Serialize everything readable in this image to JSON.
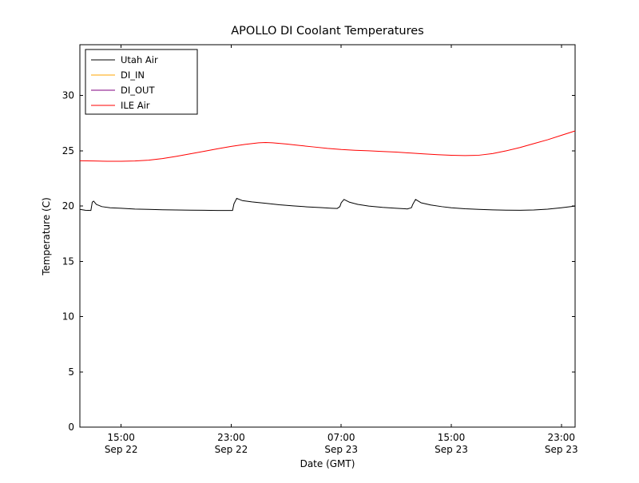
{
  "page": {
    "background": "#ffffff",
    "axes_color": "#000000"
  },
  "chart_data": {
    "type": "line",
    "title": "APOLLO DI Coolant Temperatures",
    "xlabel": "Date (GMT)",
    "ylabel": "Temperature (C)",
    "grid": false,
    "legend_position": "upper left",
    "x_unit": "hours since Sep 22 12:00 GMT",
    "xlim": [
      0,
      36
    ],
    "ylim": [
      0,
      34.6
    ],
    "yticks": [
      0,
      5,
      10,
      15,
      20,
      25,
      30
    ],
    "xticks": [
      {
        "pos": 3,
        "time": "15:00",
        "date": "Sep 22"
      },
      {
        "pos": 11,
        "time": "23:00",
        "date": "Sep 22"
      },
      {
        "pos": 19,
        "time": "07:00",
        "date": "Sep 23"
      },
      {
        "pos": 27,
        "time": "15:00",
        "date": "Sep 23"
      },
      {
        "pos": 35,
        "time": "23:00",
        "date": "Sep 23"
      }
    ],
    "series": [
      {
        "name": "Utah Air",
        "color": "#000000",
        "x": [
          0,
          0.4,
          0.8,
          0.9,
          1.0,
          1.2,
          1.6,
          2.2,
          3,
          4,
          5,
          6,
          7,
          8,
          9,
          10,
          10.8,
          11.1,
          11.2,
          11.4,
          11.8,
          12.5,
          13.5,
          14.5,
          15.5,
          16.5,
          17.5,
          18.3,
          18.7,
          18.9,
          19.0,
          19.2,
          19.6,
          20.2,
          21,
          22,
          23,
          23.8,
          24.1,
          24.2,
          24.4,
          24.8,
          25.5,
          26.3,
          27,
          28,
          29,
          30,
          31,
          32,
          33,
          34,
          35,
          36
        ],
        "values": [
          19.7,
          19.62,
          19.6,
          20.35,
          20.45,
          20.15,
          19.95,
          19.85,
          19.8,
          19.73,
          19.7,
          19.67,
          19.65,
          19.63,
          19.62,
          19.6,
          19.6,
          19.6,
          20.2,
          20.7,
          20.5,
          20.38,
          20.25,
          20.12,
          20.02,
          19.93,
          19.86,
          19.8,
          19.78,
          19.95,
          20.3,
          20.6,
          20.35,
          20.15,
          20.0,
          19.88,
          19.8,
          19.74,
          19.85,
          20.15,
          20.6,
          20.3,
          20.1,
          19.95,
          19.85,
          19.76,
          19.7,
          19.66,
          19.63,
          19.62,
          19.65,
          19.72,
          19.85,
          20.0
        ]
      },
      {
        "name": "DI_IN",
        "color": "#ffa500",
        "x": [],
        "values": []
      },
      {
        "name": "DI_OUT",
        "color": "#800080",
        "x": [],
        "values": []
      },
      {
        "name": "ILE Air",
        "color": "#ff0000",
        "x": [
          0,
          1,
          2,
          3,
          4,
          5,
          6,
          7,
          8,
          9,
          10,
          11,
          12,
          13,
          13.5,
          14,
          15,
          16,
          17,
          18,
          19,
          20,
          21,
          22,
          23,
          24,
          25,
          26,
          27,
          28,
          29,
          30,
          31,
          32,
          33,
          34,
          35,
          36
        ],
        "values": [
          24.1,
          24.08,
          24.05,
          24.05,
          24.08,
          24.15,
          24.3,
          24.5,
          24.72,
          24.95,
          25.18,
          25.4,
          25.58,
          25.72,
          25.75,
          25.72,
          25.62,
          25.48,
          25.35,
          25.22,
          25.12,
          25.05,
          25.0,
          24.94,
          24.88,
          24.8,
          24.72,
          24.65,
          24.6,
          24.57,
          24.6,
          24.75,
          25.0,
          25.3,
          25.65,
          26.0,
          26.4,
          26.8
        ]
      }
    ]
  }
}
